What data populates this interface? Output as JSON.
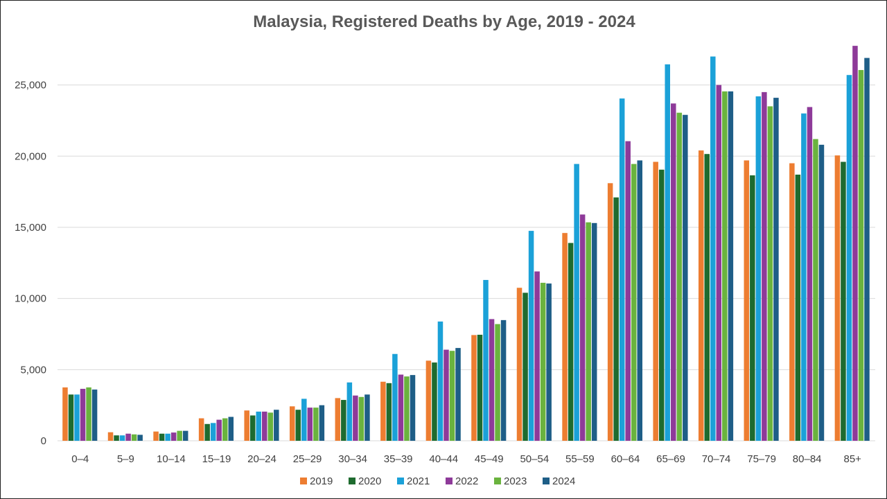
{
  "chart_data": {
    "type": "bar",
    "title": "Malaysia, Registered Deaths by Age, 2019 - 2024",
    "xlabel": "",
    "ylabel": "",
    "ylim": [
      0,
      28000
    ],
    "yticks": [
      0,
      5000,
      10000,
      15000,
      20000,
      25000
    ],
    "ytick_labels": [
      "0",
      "5,000",
      "10,000",
      "15,000",
      "20,000",
      "25,000"
    ],
    "grid": true,
    "legend_position": "bottom",
    "categories": [
      "0–4",
      "5–9",
      "10–14",
      "15–19",
      "20–24",
      "25–29",
      "30–34",
      "35–39",
      "40–44",
      "45–49",
      "50–54",
      "55–59",
      "60–64",
      "65–69",
      "70–74",
      "75–79",
      "80–84",
      "85+"
    ],
    "series": [
      {
        "name": "2019",
        "color": "#ED7D31",
        "values": [
          3750,
          600,
          650,
          1580,
          2130,
          2420,
          3000,
          4150,
          5630,
          7430,
          10750,
          14600,
          18100,
          19600,
          20400,
          19700,
          19500,
          20050
        ]
      },
      {
        "name": "2020",
        "color": "#1E6B2F",
        "values": [
          3250,
          380,
          500,
          1180,
          1780,
          2180,
          2870,
          4050,
          5500,
          7450,
          10400,
          13900,
          17100,
          19050,
          20150,
          18650,
          18700,
          19600
        ]
      },
      {
        "name": "2021",
        "color": "#1BA1D8",
        "values": [
          3250,
          380,
          500,
          1250,
          2050,
          2950,
          4100,
          6100,
          8380,
          11300,
          14750,
          19450,
          24050,
          26450,
          27000,
          24200,
          23000,
          25700
        ]
      },
      {
        "name": "2022",
        "color": "#8E3A99",
        "values": [
          3650,
          500,
          580,
          1480,
          2050,
          2330,
          3180,
          4650,
          6400,
          8550,
          11900,
          15900,
          21050,
          23700,
          25000,
          24500,
          23450,
          27750
        ]
      },
      {
        "name": "2023",
        "color": "#6AB33E",
        "values": [
          3750,
          450,
          700,
          1580,
          1980,
          2330,
          3080,
          4520,
          6320,
          8200,
          11100,
          15350,
          19450,
          23050,
          24550,
          23500,
          21200,
          26050
        ]
      },
      {
        "name": "2024",
        "color": "#1E5E87",
        "values": [
          3600,
          420,
          700,
          1680,
          2180,
          2500,
          3250,
          4620,
          6520,
          8480,
          11050,
          15300,
          19700,
          22900,
          24550,
          24100,
          20800,
          26900
        ]
      }
    ]
  }
}
